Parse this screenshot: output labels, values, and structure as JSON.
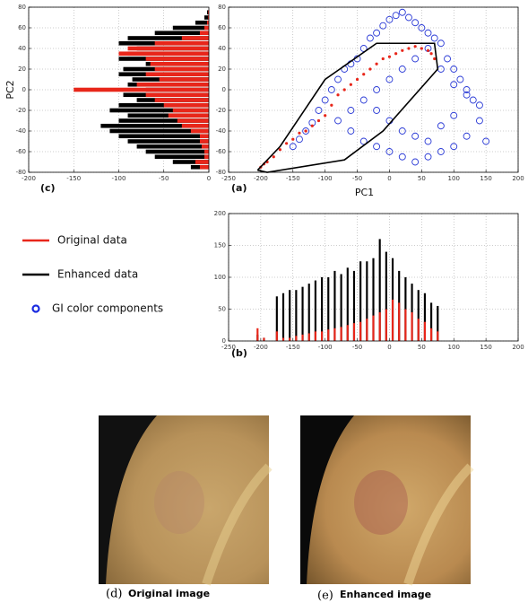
{
  "chart_data": [
    {
      "type": "hbar",
      "label": "(c)",
      "ylabel": "PC2",
      "xlim": [
        -200,
        0
      ],
      "xticks": [
        -200,
        -150,
        -100,
        -50,
        0
      ],
      "ylim": [
        -80,
        80
      ],
      "yticks": [
        -80,
        -60,
        -40,
        -20,
        0,
        20,
        40,
        60,
        80
      ],
      "grid": true,
      "y": [
        -75,
        -70,
        -65,
        -60,
        -55,
        -50,
        -45,
        -40,
        -35,
        -30,
        -25,
        -20,
        -15,
        -10,
        -5,
        0,
        5,
        10,
        15,
        20,
        25,
        30,
        35,
        40,
        45,
        50,
        55,
        60,
        65,
        70,
        75
      ],
      "series": [
        {
          "color": "#000000",
          "values": [
            -20,
            -40,
            -60,
            -70,
            -80,
            -90,
            -100,
            -110,
            -120,
            -100,
            -90,
            -110,
            -100,
            -80,
            -95,
            -70,
            -90,
            -85,
            -100,
            -95,
            -70,
            -100,
            -90,
            -80,
            -100,
            -90,
            -60,
            -40,
            -15,
            -5,
            -2
          ]
        },
        {
          "color": "#e8261a",
          "values": [
            -10,
            -15,
            -5,
            -5,
            -8,
            -10,
            -10,
            -20,
            -30,
            -35,
            -45,
            -40,
            -50,
            -60,
            -70,
            -150,
            -80,
            -55,
            -70,
            -60,
            -65,
            -70,
            -100,
            -90,
            -60,
            -30,
            -10,
            -5,
            -2,
            -1,
            -1
          ]
        }
      ]
    },
    {
      "type": "scatter",
      "label": "(a)",
      "xlabel": "PC1",
      "xlim": [
        -250,
        200
      ],
      "xticks": [
        -250,
        -200,
        -150,
        -100,
        -50,
        0,
        50,
        100,
        150,
        200
      ],
      "ylim": [
        -80,
        80
      ],
      "yticks": [
        -80,
        -60,
        -40,
        -20,
        0,
        20,
        40,
        60,
        80
      ],
      "grid": true,
      "series": [
        {
          "color": "#2b3bd6",
          "marker": "circle",
          "x": [
            -150,
            -140,
            -130,
            -120,
            -110,
            -100,
            -90,
            -80,
            -70,
            -60,
            -50,
            -40,
            -30,
            -20,
            -10,
            0,
            10,
            20,
            30,
            40,
            50,
            60,
            70,
            80,
            90,
            100,
            110,
            120,
            130,
            140,
            150,
            -60,
            -40,
            -20,
            0,
            20,
            40,
            60,
            80,
            100,
            120,
            -20,
            0,
            20,
            40,
            60,
            80,
            100,
            -80,
            -60,
            -40,
            -20,
            0,
            20,
            40,
            60,
            80,
            100,
            120,
            140
          ],
          "y": [
            -55,
            -48,
            -40,
            -32,
            -20,
            -10,
            0,
            10,
            20,
            25,
            30,
            40,
            50,
            55,
            62,
            68,
            72,
            75,
            70,
            65,
            60,
            55,
            50,
            45,
            30,
            20,
            10,
            0,
            -10,
            -30,
            -50,
            -40,
            -50,
            -55,
            -60,
            -65,
            -70,
            -65,
            -60,
            -55,
            -45,
            -20,
            -30,
            -40,
            -45,
            -50,
            -35,
            -25,
            -30,
            -20,
            -10,
            0,
            10,
            20,
            30,
            40,
            20,
            5,
            -5,
            -15
          ]
        },
        {
          "color": "#e8261a",
          "marker": "dot",
          "x": [
            -200,
            -195,
            -190,
            -180,
            -170,
            -160,
            -150,
            -140,
            -130,
            -120,
            -110,
            -100,
            -90,
            -80,
            -70,
            -60,
            -50,
            -40,
            -30,
            -20,
            -10,
            0,
            10,
            20,
            30,
            40,
            50,
            60,
            65,
            70
          ],
          "y": [
            -75,
            -72,
            -70,
            -65,
            -58,
            -52,
            -48,
            -42,
            -40,
            -35,
            -30,
            -25,
            -15,
            -5,
            0,
            5,
            10,
            15,
            20,
            25,
            30,
            32,
            35,
            38,
            40,
            42,
            40,
            38,
            35,
            30
          ]
        },
        {
          "color": "#000000",
          "marker": "line",
          "x": [
            -205,
            -170,
            -100,
            -20,
            70,
            75,
            -10,
            -70,
            -190,
            -205
          ],
          "y": [
            -78,
            -55,
            10,
            45,
            45,
            20,
            -40,
            -68,
            -80,
            -78
          ]
        }
      ]
    },
    {
      "type": "vbar",
      "label": "(b)",
      "xlim": [
        -250,
        200
      ],
      "xticks": [
        -250,
        -200,
        -150,
        -100,
        -50,
        0,
        50,
        100,
        150,
        200
      ],
      "ylim": [
        0,
        200
      ],
      "yticks": [
        0,
        50,
        100,
        150,
        200
      ],
      "grid": true,
      "x": [
        -205,
        -195,
        -185,
        -175,
        -165,
        -155,
        -145,
        -135,
        -125,
        -115,
        -105,
        -95,
        -85,
        -75,
        -65,
        -55,
        -45,
        -35,
        -25,
        -15,
        -5,
        5,
        15,
        25,
        35,
        45,
        55,
        65,
        75
      ],
      "series": [
        {
          "color": "#000000",
          "values": [
            10,
            5,
            0,
            70,
            75,
            80,
            80,
            85,
            90,
            95,
            100,
            100,
            110,
            105,
            115,
            110,
            125,
            125,
            130,
            160,
            140,
            130,
            110,
            100,
            90,
            80,
            75,
            60,
            55
          ]
        },
        {
          "color": "#e8261a",
          "values": [
            20,
            5,
            0,
            15,
            5,
            5,
            8,
            10,
            12,
            15,
            15,
            18,
            20,
            22,
            25,
            28,
            30,
            35,
            40,
            45,
            50,
            65,
            60,
            50,
            45,
            35,
            30,
            20,
            15
          ]
        }
      ]
    }
  ],
  "legend": [
    {
      "name": "Original data",
      "color": "#e8261a",
      "marker": "line"
    },
    {
      "name": "Enhanced data",
      "color": "#000000",
      "marker": "line"
    },
    {
      "name": "GI color components",
      "color": "#1a2be0",
      "marker": "circle"
    }
  ],
  "images": [
    {
      "label": "(d)",
      "caption": "Original image"
    },
    {
      "label": "(e)",
      "caption": "Enhanced image"
    }
  ]
}
